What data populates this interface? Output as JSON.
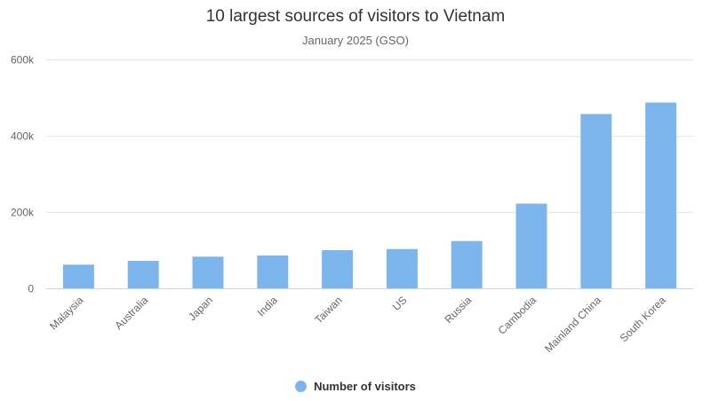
{
  "chart_data": {
    "type": "bar",
    "title": "10 largest sources of visitors to Vietnam",
    "subtitle": "January 2025 (GSO)",
    "xlabel": "",
    "ylabel": "",
    "categories": [
      "Malaysia",
      "Australia",
      "Japan",
      "India",
      "Taiwan",
      "US",
      "Russia",
      "Cambodia",
      "Mainland China",
      "South Korea"
    ],
    "series": [
      {
        "name": "Number of visitors",
        "color": "#7cb5ec",
        "values": [
          62000,
          72000,
          83000,
          86000,
          100000,
          103000,
          124000,
          222000,
          457000,
          487000
        ]
      }
    ],
    "ylim": [
      0,
      600000
    ],
    "yticks": [
      0,
      200000,
      400000,
      600000
    ],
    "ytick_labels": [
      "0",
      "200k",
      "400k",
      "600k"
    ],
    "grid": true,
    "legend_position": "bottom"
  }
}
